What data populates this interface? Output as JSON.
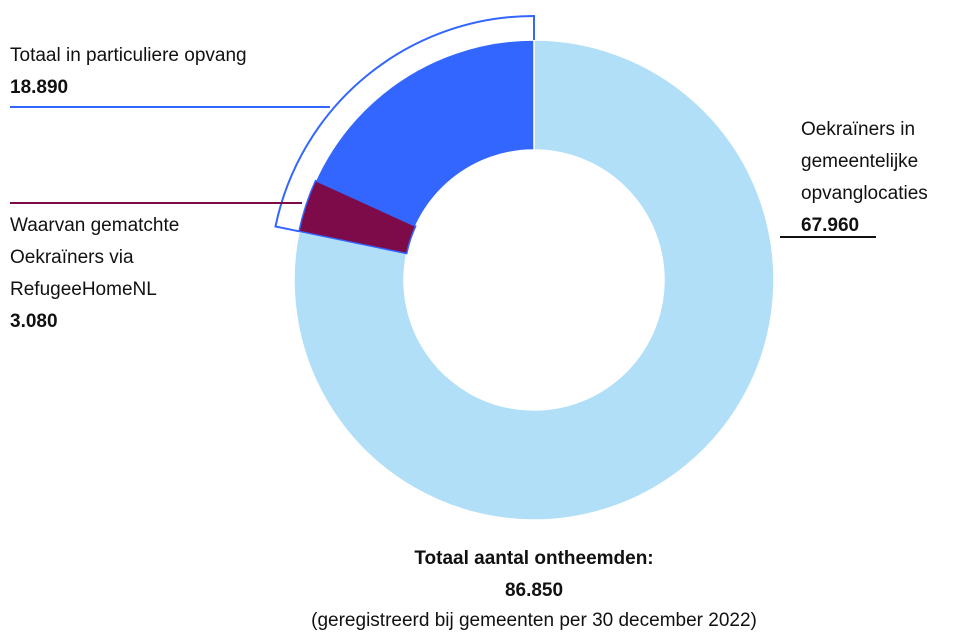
{
  "chart_data": {
    "type": "pie",
    "donut": true,
    "categories": [
      "Oekraïners in gemeentelijke opvanglocaties",
      "Totaal in particuliere opvang"
    ],
    "values": [
      67960,
      18890
    ],
    "value_labels": [
      "67.960",
      "18.890"
    ],
    "colors": [
      "#b0dff7",
      "#3366ff"
    ],
    "sub_segment": {
      "parent": 1,
      "name": "Waarvan gematchte Oekraïners via RefugeeHomeNL",
      "value": 3080,
      "value_label": "3.080",
      "color": "#7d0b4a"
    },
    "total": {
      "title": "Totaal aantal ontheemden:",
      "value": 86850,
      "value_label": "86.850",
      "note": "(geregistreerd bij gemeenten per 30 december 2022)"
    }
  }
}
